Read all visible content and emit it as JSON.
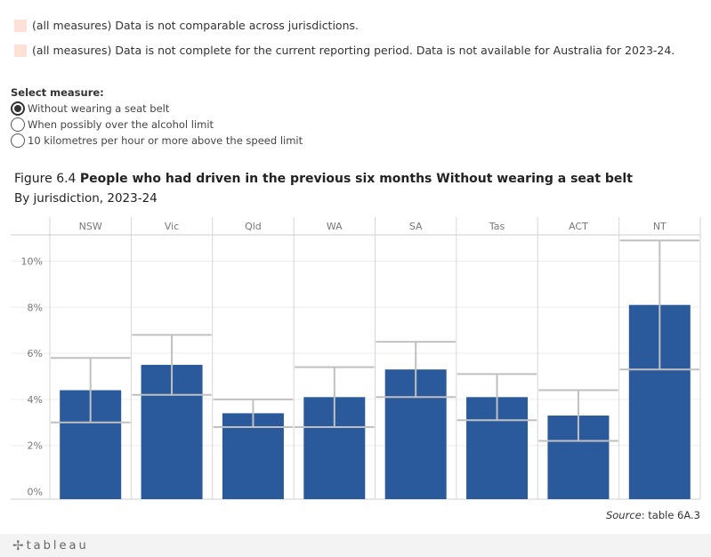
{
  "notes": [
    {
      "text": "(all measures) Data is not comparable across jurisdictions.",
      "color": "#fde0d6"
    },
    {
      "text": "(all measures) Data is not complete for the current reporting period. Data is not available for Australia for 2023-24.",
      "color": "#fde0d6"
    }
  ],
  "selector": {
    "title": "Select measure:",
    "options": [
      {
        "label": "Without wearing a seat belt",
        "selected": true
      },
      {
        "label": "When possibly over the alcohol limit",
        "selected": false
      },
      {
        "label": "10 kilometres per hour or more above the speed limit",
        "selected": false
      }
    ]
  },
  "figure": {
    "prefix": "Figure 6.4",
    "title": "People who had driven in the previous six months Without wearing a seat belt",
    "subtitle": "By jurisdiction, 2023-24"
  },
  "source": {
    "label": "Source",
    "text": ": table 6A.3"
  },
  "footer": {
    "logo_text": "tableau",
    "logo_icon": "tableau-plus-icon"
  },
  "chart_data": {
    "type": "bar",
    "categories": [
      "NSW",
      "Vic",
      "Qld",
      "WA",
      "SA",
      "Tas",
      "ACT",
      "NT"
    ],
    "values": [
      4.4,
      5.5,
      3.4,
      4.1,
      5.3,
      4.1,
      3.3,
      8.1
    ],
    "ci_lower": [
      3.0,
      4.2,
      2.8,
      2.8,
      4.1,
      3.1,
      2.2,
      5.3
    ],
    "ci_upper": [
      5.8,
      6.8,
      4.0,
      5.4,
      6.5,
      5.1,
      4.4,
      10.9
    ],
    "yticks": [
      "0%",
      "2%",
      "4%",
      "6%",
      "8%",
      "10%"
    ],
    "ylim": [
      0,
      11.5
    ],
    "bar_color": "#2a5a9b",
    "ci_color": "#c0c0c0",
    "grid": true
  }
}
